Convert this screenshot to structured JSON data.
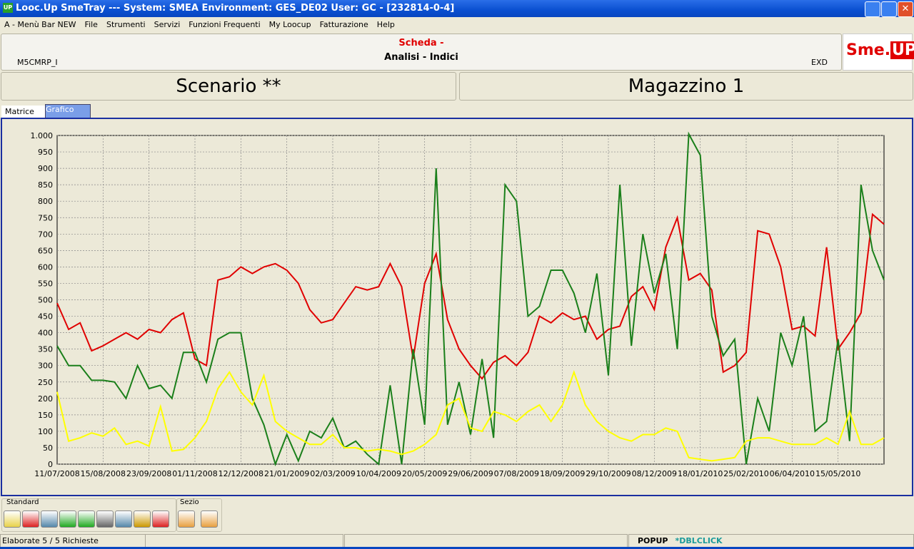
{
  "window": {
    "title": "Looc.Up SmeTray --- System: SMEA Environment: GES_DE02 User: GC - [232814-0-4]",
    "icon": "UP"
  },
  "menu": [
    "A - Menù Bar NEW",
    "File",
    "Strumenti",
    "Servizi",
    "Funzioni Frequenti",
    "My Loocup",
    "Fatturazione",
    "Help"
  ],
  "header": {
    "scheda": "Scheda -",
    "subtitle": "Analisi - Indici",
    "code": "M5CMRP_I",
    "exd": "EXD",
    "logo_a": "Sme.",
    "logo_b": "UP"
  },
  "panels": [
    "Scenario **",
    "Magazzino 1"
  ],
  "tabs": [
    "Matrice",
    "Grafico"
  ],
  "toolbar": {
    "groups": [
      "Standard",
      "Sezio"
    ]
  },
  "status": {
    "left": "Elaborate 5 / 5 Richieste",
    "popup": "POPUP",
    "dblclick": "*DBLCLICK"
  },
  "chart_data": {
    "type": "line",
    "categories": [
      "11/07/2008",
      null,
      null,
      null,
      "15/08/2008",
      null,
      null,
      null,
      "23/09/2008",
      null,
      null,
      null,
      "01/11/2008",
      null,
      null,
      null,
      "12/12/2008",
      null,
      null,
      null,
      "21/01/2009",
      null,
      null,
      null,
      "02/03/2009",
      null,
      null,
      null,
      "10/04/2009",
      null,
      null,
      null,
      "20/05/2009",
      null,
      null,
      null,
      "29/06/2009",
      null,
      null,
      null,
      "07/08/2009",
      null,
      null,
      null,
      "18/09/2009",
      null,
      null,
      null,
      "29/10/2009",
      null,
      null,
      null,
      "08/12/2009",
      null,
      null,
      null,
      "18/01/2010",
      null,
      null,
      null,
      "25/02/2010",
      null,
      null,
      null,
      "06/04/2010",
      null,
      null,
      null,
      "15/05/2010",
      null,
      null,
      null,
      null
    ],
    "series": [
      {
        "color": "#e00000",
        "values": [
          490,
          410,
          430,
          345,
          360,
          380,
          400,
          380,
          410,
          400,
          440,
          460,
          320,
          300,
          560,
          570,
          600,
          580,
          600,
          610,
          590,
          550,
          470,
          430,
          440,
          490,
          540,
          530,
          540,
          610,
          540,
          320,
          550,
          640,
          440,
          350,
          300,
          260,
          310,
          330,
          300,
          340,
          450,
          430,
          460,
          440,
          450,
          380,
          410,
          420,
          510,
          540,
          470,
          660,
          750,
          560,
          580,
          530,
          280,
          300,
          340,
          710,
          700,
          600,
          410,
          420,
          390,
          660,
          350,
          400,
          460,
          760,
          730
        ]
      },
      {
        "color": "#1a7f1a",
        "values": [
          360,
          300,
          300,
          255,
          255,
          250,
          200,
          300,
          230,
          240,
          200,
          340,
          340,
          250,
          380,
          400,
          400,
          200,
          120,
          0,
          90,
          10,
          100,
          80,
          140,
          50,
          70,
          30,
          0,
          240,
          0,
          350,
          120,
          900,
          120,
          250,
          90,
          320,
          80,
          850,
          800,
          450,
          480,
          590,
          590,
          520,
          400,
          580,
          270,
          850,
          360,
          700,
          520,
          640,
          350,
          1010,
          940,
          450,
          330,
          380,
          0,
          200,
          100,
          400,
          300,
          450,
          100,
          130,
          380,
          70,
          850,
          650,
          560
        ]
      },
      {
        "color": "#ffff00",
        "values": [
          220,
          70,
          80,
          95,
          85,
          110,
          60,
          70,
          55,
          175,
          40,
          45,
          80,
          130,
          230,
          280,
          220,
          180,
          270,
          130,
          100,
          80,
          60,
          60,
          90,
          50,
          50,
          40,
          45,
          40,
          30,
          40,
          60,
          90,
          180,
          200,
          110,
          100,
          160,
          150,
          130,
          160,
          180,
          130,
          180,
          280,
          180,
          130,
          100,
          80,
          70,
          90,
          90,
          110,
          100,
          20,
          15,
          10,
          15,
          20,
          70,
          80,
          80,
          70,
          60,
          60,
          60,
          80,
          60,
          160,
          60,
          60,
          80
        ]
      }
    ],
    "ylim": [
      0,
      1000
    ],
    "yticks": [
      0,
      50,
      100,
      150,
      200,
      250,
      300,
      350,
      400,
      450,
      500,
      550,
      600,
      650,
      700,
      750,
      800,
      850,
      900,
      950,
      {
        "value": 1000,
        "label": "1.000"
      }
    ],
    "grid": true
  }
}
